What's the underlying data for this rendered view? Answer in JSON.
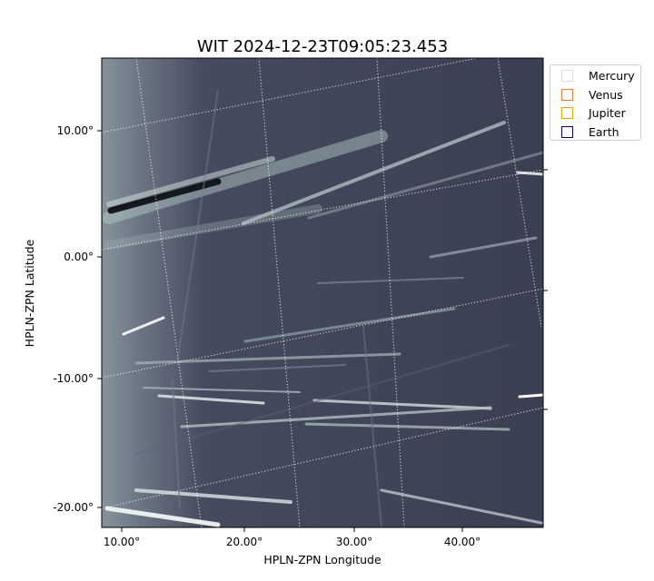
{
  "chart_data": {
    "type": "image",
    "title": "WIT 2024-12-23T09:05:23.453",
    "xlabel": "HPLN-ZPN Longitude",
    "ylabel": "HPLN-ZPN Latitude",
    "x_ticks": [
      {
        "value": 10,
        "label": "10.00°"
      },
      {
        "value": 20,
        "label": "20.00°"
      },
      {
        "value": 30,
        "label": "30.00°"
      },
      {
        "value": 40,
        "label": "40.00°"
      }
    ],
    "y_ticks": [
      {
        "value": 10,
        "label": "10.00°"
      },
      {
        "value": 0,
        "label": "0.00°"
      },
      {
        "value": -10,
        "label": "-10.00°"
      },
      {
        "value": -20,
        "label": "-20.00°"
      }
    ],
    "legend": [
      {
        "name": "Mercury",
        "color": "#dddddd"
      },
      {
        "name": "Venus",
        "color": "#e07b39"
      },
      {
        "name": "Jupiter",
        "color": "#e0a800"
      },
      {
        "name": "Earth",
        "color": "#000066"
      }
    ],
    "legend_position": "upper-right-outside",
    "grid": true,
    "colormap": "bone"
  }
}
